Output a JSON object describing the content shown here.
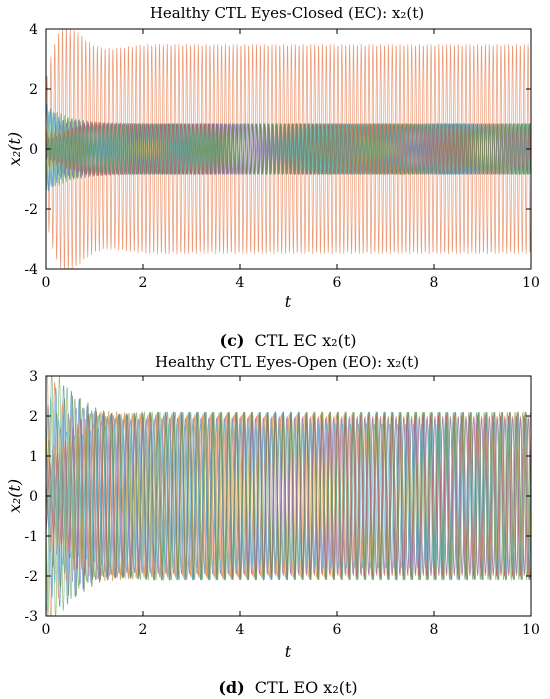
{
  "chart_data": [
    {
      "type": "line",
      "title": "Healthy CTL Eyes-Closed (EC): x₂(t)",
      "xlabel": "t",
      "ylabel": "x₂(t)",
      "xlim": [
        0,
        10
      ],
      "ylim": [
        -4,
        4
      ],
      "xticks": [
        "0",
        "2",
        "4",
        "6",
        "8",
        "10"
      ],
      "yticks": [
        "4",
        "2",
        "0",
        "-2",
        "-4"
      ],
      "grid": false,
      "caption_tag": "(c)",
      "caption_text": "CTL EC x₂(t)",
      "series": [
        {
          "color": "#e8865a",
          "amplitude": 3.5,
          "frequency": 12.5,
          "phase": 0.0
        },
        {
          "color": "#4a8fc4",
          "amplitude": 0.85,
          "frequency": 12.0,
          "phase": 0.4
        },
        {
          "color": "#d9a04a",
          "amplitude": 0.85,
          "frequency": 12.2,
          "phase": 1.1
        },
        {
          "color": "#8a7ac0",
          "amplitude": 0.85,
          "frequency": 11.8,
          "phase": 2.0
        },
        {
          "color": "#7fb36b",
          "amplitude": 0.85,
          "frequency": 12.4,
          "phase": 2.7
        },
        {
          "color": "#5cb8c8",
          "amplitude": 0.85,
          "frequency": 11.9,
          "phase": 3.5
        },
        {
          "color": "#b45a6e",
          "amplitude": 0.85,
          "frequency": 12.1,
          "phase": 4.2
        },
        {
          "color": "#6b8f5a",
          "amplitude": 0.85,
          "frequency": 12.3,
          "phase": 5.0
        }
      ]
    },
    {
      "type": "line",
      "title": "Healthy CTL Eyes-Open (EO): x₂(t)",
      "xlabel": "t",
      "ylabel": "x₂(t)",
      "xlim": [
        0,
        10
      ],
      "ylim": [
        -3,
        3
      ],
      "xticks": [
        "0",
        "2",
        "4",
        "6",
        "8",
        "10"
      ],
      "yticks": [
        "3",
        "2",
        "1",
        "0",
        "-1",
        "-2",
        "-3"
      ],
      "grid": false,
      "caption_tag": "(d)",
      "caption_text": "CTL EO x₂(t)",
      "series": [
        {
          "color": "#4a8fc4",
          "amplitude": 2.1,
          "frequency": 6.2,
          "phase": 0.0
        },
        {
          "color": "#e8865a",
          "amplitude": 2.0,
          "frequency": 6.25,
          "phase": 0.8
        },
        {
          "color": "#d9a04a",
          "amplitude": 2.05,
          "frequency": 6.18,
          "phase": 1.6
        },
        {
          "color": "#8a7ac0",
          "amplitude": 1.95,
          "frequency": 6.22,
          "phase": 2.4
        },
        {
          "color": "#7fb36b",
          "amplitude": 2.1,
          "frequency": 6.28,
          "phase": 3.2
        },
        {
          "color": "#5cb8c8",
          "amplitude": 1.8,
          "frequency": 6.15,
          "phase": 4.0
        },
        {
          "color": "#b45a6e",
          "amplitude": 2.0,
          "frequency": 6.24,
          "phase": 4.8
        },
        {
          "color": "#6b8f5a",
          "amplitude": 2.1,
          "frequency": 6.2,
          "phase": 5.6
        }
      ]
    }
  ]
}
